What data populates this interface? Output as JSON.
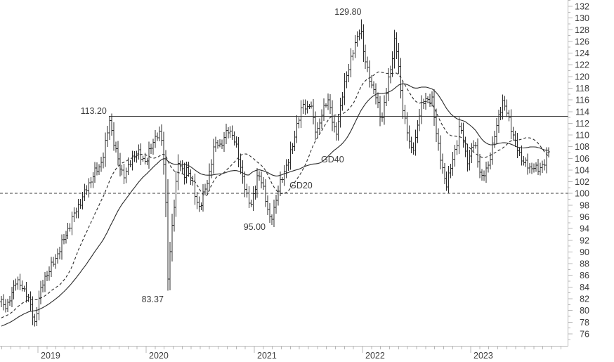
{
  "chart_data": {
    "type": "ohlc",
    "title": "",
    "frequency": "weekly",
    "colors": {
      "background": "#ffffff",
      "bars": "#2b2b2b",
      "moving_averages": "#2b2b2b",
      "axis": "#b8b8b8",
      "labels": "#3c3c3c",
      "reference_lines": "#3c3c3c"
    },
    "x_axis": {
      "years": [
        2019,
        2020,
        2021,
        2022,
        2023
      ],
      "minor_tick_months": 1,
      "range_start": 2018.65,
      "range_end": 2023.95
    },
    "y_axis": {
      "min": 76,
      "max": 132,
      "label_step": 2,
      "minor_tick_step": 1,
      "side": "right"
    },
    "reference_lines": [
      {
        "name": "resistance-113-20",
        "value": 113.2,
        "style": "solid",
        "from_year": 2019.656
      },
      {
        "name": "level-100-00",
        "value": 100.0,
        "style": "dashed",
        "from_year": 2018.65
      }
    ],
    "moving_averages": [
      {
        "label": "GD20",
        "window": 20,
        "style": "dashed"
      },
      {
        "label": "GD40",
        "window": 40,
        "style": "solid"
      }
    ],
    "annotations": [
      {
        "text": "129.80",
        "year": 2021.99,
        "value": 130.56,
        "anchor": "end"
      },
      {
        "text": "113.20",
        "year": 2019.636,
        "value": 113.6,
        "anchor": "end"
      },
      {
        "text": "95.00",
        "year": 2021.104,
        "value": 93.8,
        "anchor": "end"
      },
      {
        "text": "83.37",
        "year": 2020.162,
        "value": 81.4,
        "anchor": "end"
      },
      {
        "text": "GD40",
        "year": 2021.617,
        "value": 105.3,
        "anchor": "start"
      },
      {
        "text": "GD20",
        "year": 2021.325,
        "value": 100.9,
        "anchor": "start"
      }
    ],
    "series": {
      "name": "price",
      "start_year": 2018.662,
      "end_year": 2023.715,
      "bars_per_year": 52,
      "pegs": [
        {
          "year": 2019.662,
          "type": "high",
          "value": 113.2
        },
        {
          "year": 2020.201,
          "type": "low",
          "value": 83.37
        },
        {
          "year": 2021.143,
          "type": "low",
          "value": 95.0
        },
        {
          "year": 2021.981,
          "type": "high",
          "value": 129.8
        }
      ],
      "close_anchors": [
        [
          2018.669,
          81.5
        ],
        [
          2018.714,
          80.5
        ],
        [
          2018.753,
          82.5
        ],
        [
          2018.792,
          85.3
        ],
        [
          2018.844,
          84.0
        ],
        [
          2018.896,
          83.0
        ],
        [
          2018.935,
          80.5
        ],
        [
          2018.968,
          77.5
        ],
        [
          2019.006,
          82.0
        ],
        [
          2019.052,
          85.0
        ],
        [
          2019.104,
          87.0
        ],
        [
          2019.156,
          88.5
        ],
        [
          2019.208,
          91.0
        ],
        [
          2019.26,
          93.0
        ],
        [
          2019.312,
          95.5
        ],
        [
          2019.364,
          97.5
        ],
        [
          2019.416,
          99.5
        ],
        [
          2019.468,
          101.5
        ],
        [
          2019.519,
          103.5
        ],
        [
          2019.571,
          104.5
        ],
        [
          2019.61,
          107.0
        ],
        [
          2019.643,
          110.5
        ],
        [
          2019.662,
          112.6
        ],
        [
          2019.688,
          110.0
        ],
        [
          2019.727,
          106.5
        ],
        [
          2019.766,
          104.0
        ],
        [
          2019.805,
          103.0
        ],
        [
          2019.844,
          105.0
        ],
        [
          2019.883,
          106.5
        ],
        [
          2019.922,
          107.0
        ],
        [
          2019.961,
          106.0
        ],
        [
          2020.0,
          105.5
        ],
        [
          2020.039,
          107.5
        ],
        [
          2020.078,
          109.5
        ],
        [
          2020.117,
          110.3
        ],
        [
          2020.143,
          109.0
        ],
        [
          2020.169,
          104.0
        ],
        [
          2020.188,
          95.0
        ],
        [
          2020.201,
          85.5
        ],
        [
          2020.221,
          90.0
        ],
        [
          2020.247,
          96.0
        ],
        [
          2020.273,
          101.0
        ],
        [
          2020.299,
          106.0
        ],
        [
          2020.325,
          104.0
        ],
        [
          2020.351,
          103.0
        ],
        [
          2020.377,
          104.5
        ],
        [
          2020.403,
          103.0
        ],
        [
          2020.429,
          101.5
        ],
        [
          2020.461,
          99.0
        ],
        [
          2020.494,
          97.5
        ],
        [
          2020.526,
          99.5
        ],
        [
          2020.558,
          101.5
        ],
        [
          2020.591,
          104.0
        ],
        [
          2020.623,
          107.5
        ],
        [
          2020.656,
          109.0
        ],
        [
          2020.688,
          108.0
        ],
        [
          2020.721,
          109.5
        ],
        [
          2020.76,
          111.0
        ],
        [
          2020.799,
          110.0
        ],
        [
          2020.831,
          108.0
        ],
        [
          2020.864,
          105.5
        ],
        [
          2020.896,
          102.5
        ],
        [
          2020.929,
          99.5
        ],
        [
          2020.961,
          98.0
        ],
        [
          2020.994,
          100.0
        ],
        [
          2021.026,
          102.5
        ],
        [
          2021.058,
          103.0
        ],
        [
          2021.091,
          100.5
        ],
        [
          2021.117,
          97.5
        ],
        [
          2021.143,
          95.5
        ],
        [
          2021.169,
          96.5
        ],
        [
          2021.195,
          98.5
        ],
        [
          2021.227,
          101.0
        ],
        [
          2021.26,
          103.0
        ],
        [
          2021.292,
          104.5
        ],
        [
          2021.325,
          106.0
        ],
        [
          2021.357,
          108.5
        ],
        [
          2021.39,
          111.5
        ],
        [
          2021.422,
          113.5
        ],
        [
          2021.455,
          115.5
        ],
        [
          2021.487,
          114.5
        ],
        [
          2021.519,
          115.5
        ],
        [
          2021.552,
          112.0
        ],
        [
          2021.578,
          110.5
        ],
        [
          2021.61,
          112.5
        ],
        [
          2021.643,
          114.5
        ],
        [
          2021.675,
          116.5
        ],
        [
          2021.701,
          114.5
        ],
        [
          2021.727,
          111.5
        ],
        [
          2021.753,
          110.0
        ],
        [
          2021.786,
          113.5
        ],
        [
          2021.818,
          117.0
        ],
        [
          2021.851,
          120.0
        ],
        [
          2021.883,
          122.5
        ],
        [
          2021.916,
          124.5
        ],
        [
          2021.948,
          126.5
        ],
        [
          2021.981,
          128.8
        ],
        [
          2022.006,
          124.5
        ],
        [
          2022.032,
          122.0
        ],
        [
          2022.058,
          120.5
        ],
        [
          2022.084,
          118.5
        ],
        [
          2022.117,
          117.0
        ],
        [
          2022.143,
          115.0
        ],
        [
          2022.175,
          112.5
        ],
        [
          2022.208,
          116.0
        ],
        [
          2022.24,
          119.5
        ],
        [
          2022.273,
          123.0
        ],
        [
          2022.299,
          126.3
        ],
        [
          2022.325,
          123.5
        ],
        [
          2022.351,
          118.0
        ],
        [
          2022.383,
          113.5
        ],
        [
          2022.416,
          110.0
        ],
        [
          2022.448,
          107.5
        ],
        [
          2022.481,
          108.5
        ],
        [
          2022.513,
          112.0
        ],
        [
          2022.545,
          115.0
        ],
        [
          2022.578,
          116.5
        ],
        [
          2022.61,
          115.5
        ],
        [
          2022.643,
          116.0
        ],
        [
          2022.675,
          111.5
        ],
        [
          2022.708,
          107.0
        ],
        [
          2022.74,
          104.0
        ],
        [
          2022.773,
          101.5
        ],
        [
          2022.805,
          103.5
        ],
        [
          2022.838,
          106.0
        ],
        [
          2022.87,
          108.5
        ],
        [
          2022.896,
          111.5
        ],
        [
          2022.922,
          110.0
        ],
        [
          2022.948,
          107.0
        ],
        [
          2022.974,
          105.5
        ],
        [
          2023.0,
          107.0
        ],
        [
          2023.026,
          108.5
        ],
        [
          2023.052,
          107.5
        ],
        [
          2023.078,
          104.5
        ],
        [
          2023.104,
          102.5
        ],
        [
          2023.13,
          103.5
        ],
        [
          2023.162,
          105.0
        ],
        [
          2023.195,
          107.5
        ],
        [
          2023.227,
          110.5
        ],
        [
          2023.26,
          113.5
        ],
        [
          2023.292,
          115.5
        ],
        [
          2023.325,
          114.5
        ],
        [
          2023.357,
          112.5
        ],
        [
          2023.39,
          110.0
        ],
        [
          2023.422,
          108.0
        ],
        [
          2023.455,
          106.5
        ],
        [
          2023.487,
          105.5
        ],
        [
          2023.519,
          104.8
        ],
        [
          2023.552,
          104.2
        ],
        [
          2023.584,
          104.8
        ],
        [
          2023.617,
          103.8
        ],
        [
          2023.649,
          104.5
        ],
        [
          2023.682,
          105.5
        ],
        [
          2023.714,
          107.0
        ]
      ]
    }
  }
}
